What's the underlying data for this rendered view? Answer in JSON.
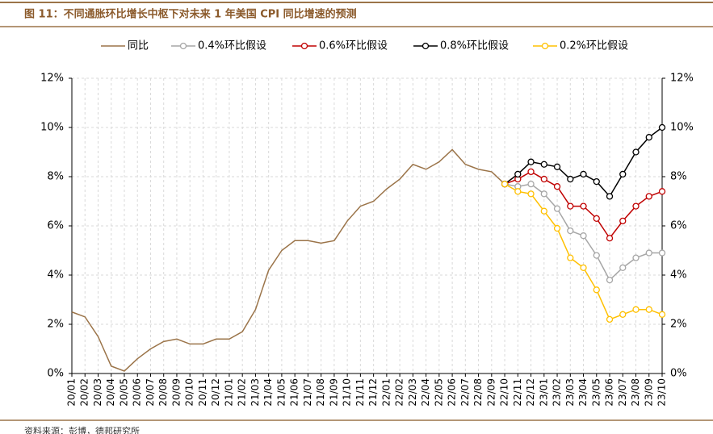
{
  "chart_data": {
    "type": "line",
    "title": "图 11：不同通胀环比增长中枢下对未来 1 年美国 CPI 同比增速的预测",
    "source": "资料来源：彭博，德邦研究所",
    "categories": [
      "20/01",
      "20/02",
      "20/03",
      "20/04",
      "20/05",
      "20/06",
      "20/07",
      "20/08",
      "20/09",
      "20/10",
      "20/11",
      "20/12",
      "21/01",
      "21/02",
      "21/03",
      "21/04",
      "21/05",
      "21/06",
      "21/07",
      "21/08",
      "21/09",
      "21/10",
      "21/11",
      "21/12",
      "22/01",
      "22/02",
      "22/03",
      "22/04",
      "22/05",
      "22/06",
      "22/07",
      "22/08",
      "22/09",
      "22/10",
      "22/11",
      "22/12",
      "23/01",
      "23/02",
      "23/03",
      "23/04",
      "23/05",
      "23/06",
      "23/07",
      "23/08",
      "23/09",
      "23/10"
    ],
    "series": [
      {
        "name": "同比",
        "color": "#9b7449",
        "marker": false,
        "values": [
          2.5,
          2.3,
          1.5,
          0.3,
          0.1,
          0.6,
          1.0,
          1.3,
          1.4,
          1.2,
          1.2,
          1.4,
          1.4,
          1.7,
          2.6,
          4.2,
          5.0,
          5.4,
          5.4,
          5.3,
          5.4,
          6.2,
          6.8,
          7.0,
          7.5,
          7.9,
          8.5,
          8.3,
          8.6,
          9.1,
          8.5,
          8.3,
          8.2,
          7.7,
          null,
          null,
          null,
          null,
          null,
          null,
          null,
          null,
          null,
          null,
          null,
          null
        ]
      },
      {
        "name": "0.4%环比假设",
        "color": "#a6a6a6",
        "marker": true,
        "values": [
          null,
          null,
          null,
          null,
          null,
          null,
          null,
          null,
          null,
          null,
          null,
          null,
          null,
          null,
          null,
          null,
          null,
          null,
          null,
          null,
          null,
          null,
          null,
          null,
          null,
          null,
          null,
          null,
          null,
          null,
          null,
          null,
          null,
          7.7,
          7.6,
          7.7,
          7.3,
          6.7,
          5.8,
          5.6,
          4.8,
          3.8,
          4.3,
          4.7,
          4.9,
          4.9
        ]
      },
      {
        "name": "0.6%环比假设",
        "color": "#c00000",
        "marker": true,
        "values": [
          null,
          null,
          null,
          null,
          null,
          null,
          null,
          null,
          null,
          null,
          null,
          null,
          null,
          null,
          null,
          null,
          null,
          null,
          null,
          null,
          null,
          null,
          null,
          null,
          null,
          null,
          null,
          null,
          null,
          null,
          null,
          null,
          null,
          7.7,
          7.9,
          8.2,
          7.9,
          7.6,
          6.8,
          6.8,
          6.3,
          5.5,
          6.2,
          6.8,
          7.2,
          7.4
        ]
      },
      {
        "name": "0.8%环比假设",
        "color": "#000000",
        "marker": true,
        "values": [
          null,
          null,
          null,
          null,
          null,
          null,
          null,
          null,
          null,
          null,
          null,
          null,
          null,
          null,
          null,
          null,
          null,
          null,
          null,
          null,
          null,
          null,
          null,
          null,
          null,
          null,
          null,
          null,
          null,
          null,
          null,
          null,
          null,
          7.7,
          8.1,
          8.6,
          8.5,
          8.4,
          7.9,
          8.1,
          7.8,
          7.2,
          8.1,
          9.0,
          9.6,
          10.0
        ]
      },
      {
        "name": "0.2%环比假设",
        "color": "#ffc000",
        "marker": true,
        "values": [
          null,
          null,
          null,
          null,
          null,
          null,
          null,
          null,
          null,
          null,
          null,
          null,
          null,
          null,
          null,
          null,
          null,
          null,
          null,
          null,
          null,
          null,
          null,
          null,
          null,
          null,
          null,
          null,
          null,
          null,
          null,
          null,
          null,
          7.7,
          7.4,
          7.3,
          6.6,
          5.9,
          4.7,
          4.3,
          3.4,
          2.2,
          2.4,
          2.6,
          2.6,
          2.4
        ]
      }
    ],
    "ylim": [
      0,
      12
    ],
    "yticks": [
      {
        "value": 0,
        "label": "0%"
      },
      {
        "value": 2,
        "label": "2%"
      },
      {
        "value": 4,
        "label": "4%"
      },
      {
        "value": 6,
        "label": "6%"
      },
      {
        "value": 8,
        "label": "8%"
      },
      {
        "value": 10,
        "label": "10%"
      },
      {
        "value": 12,
        "label": "12%"
      }
    ],
    "grid": true,
    "legend": "top"
  }
}
